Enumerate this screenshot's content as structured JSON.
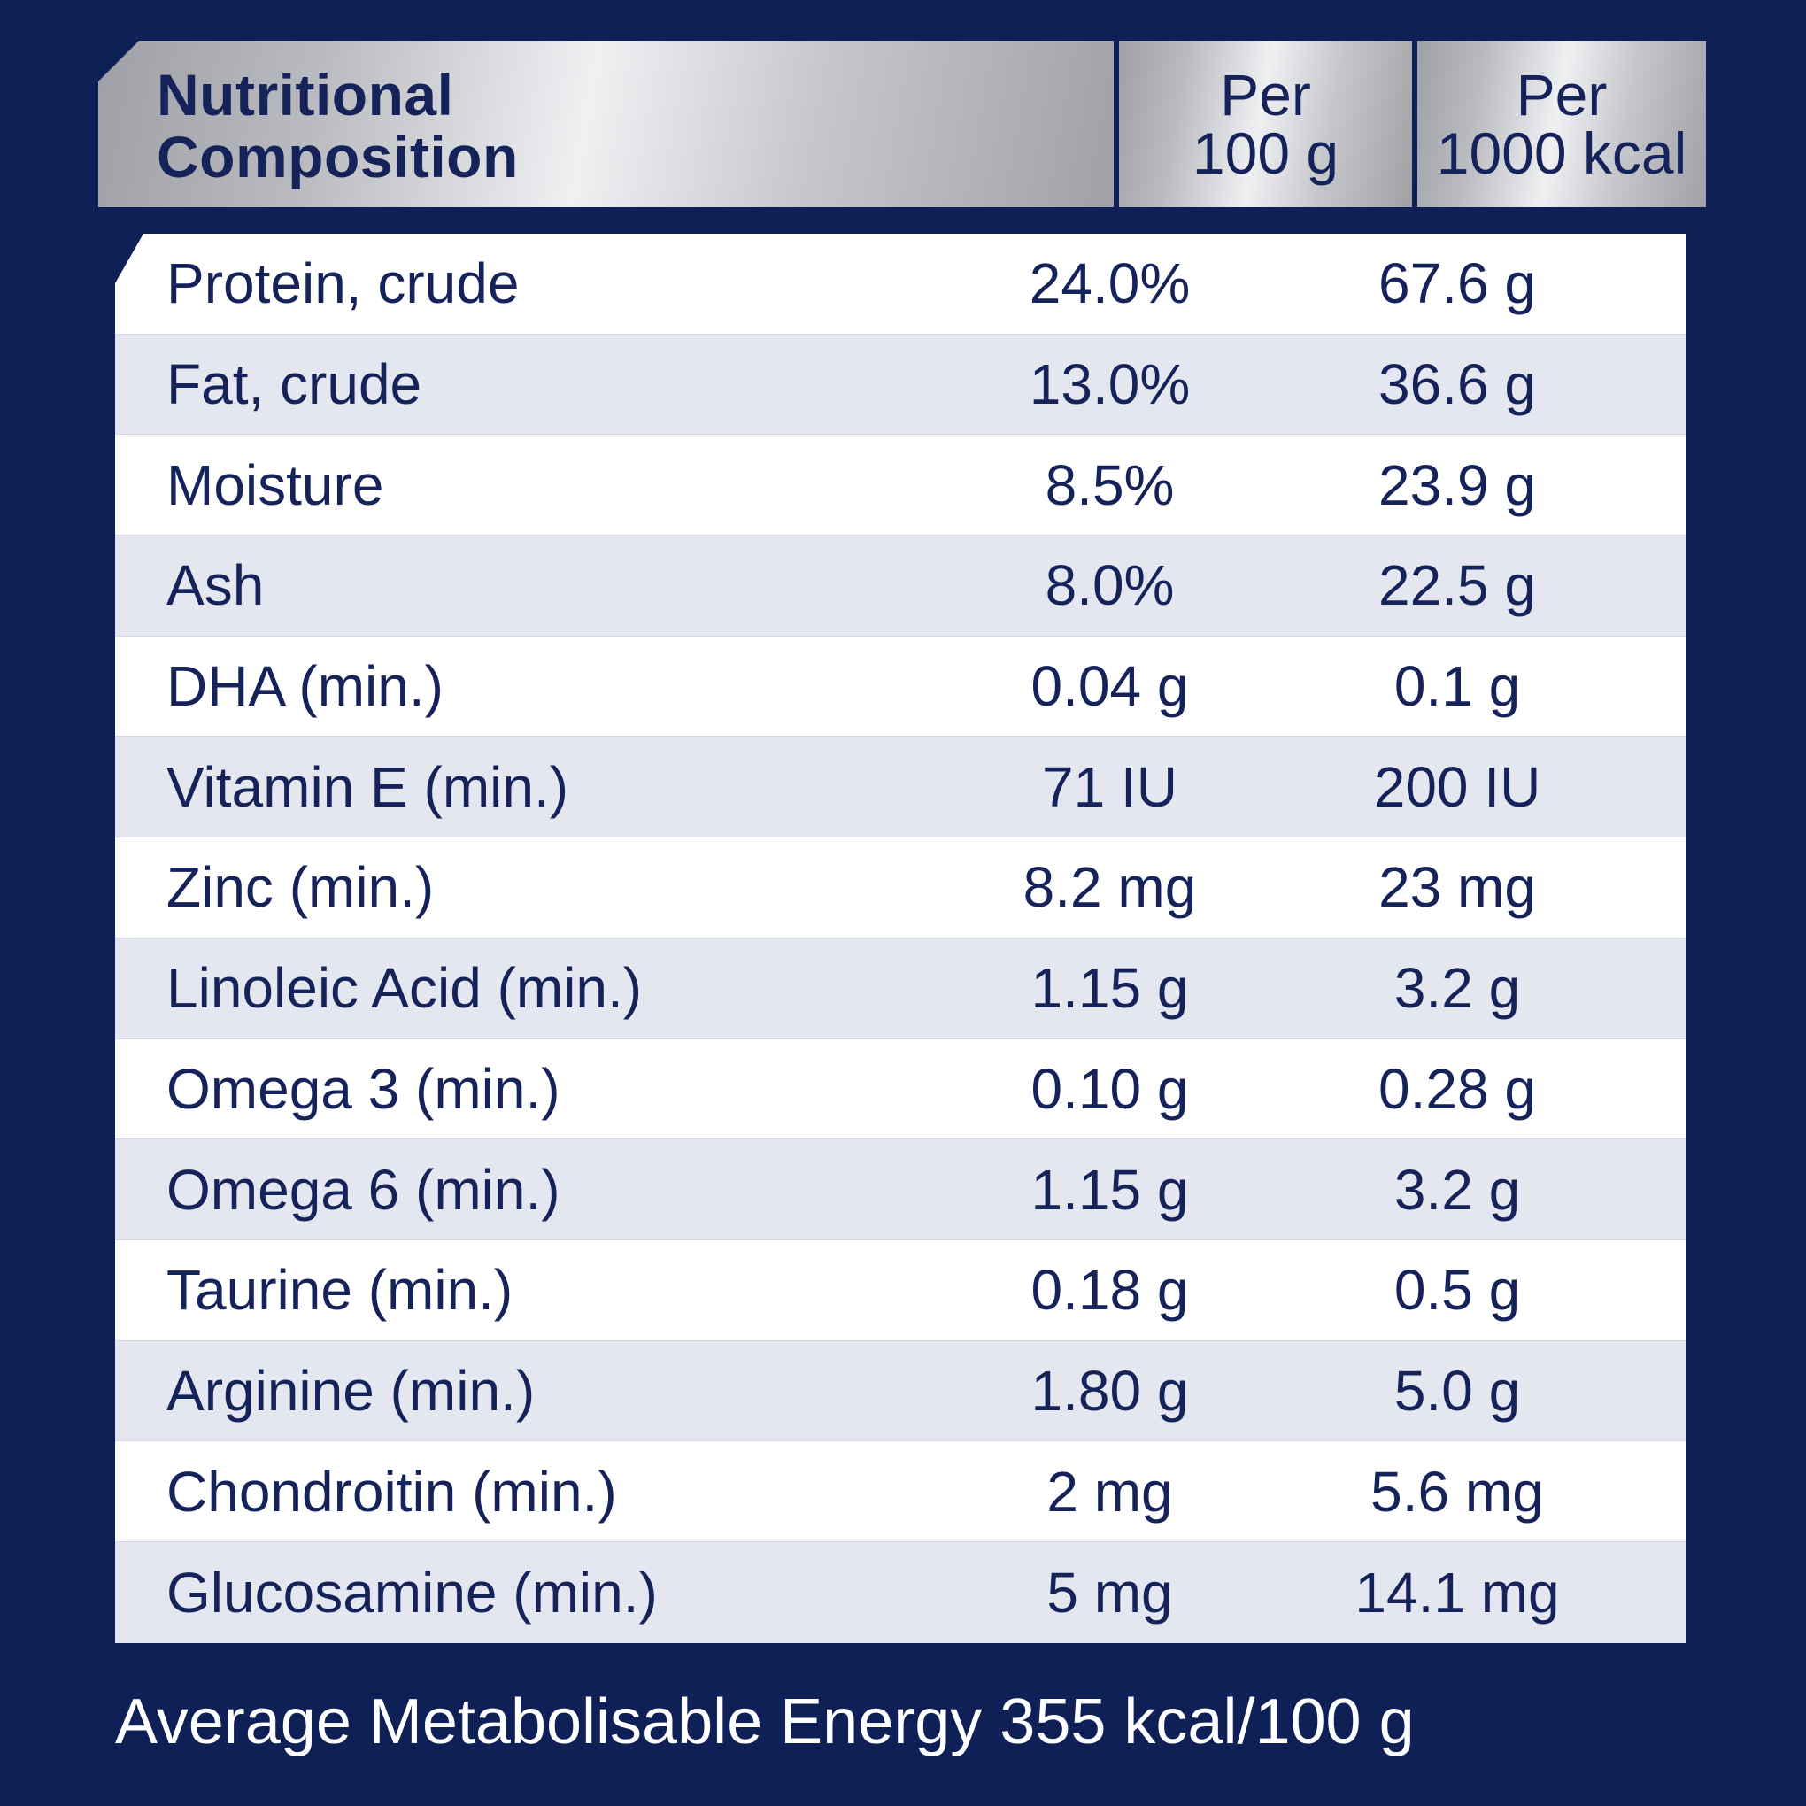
{
  "header": {
    "title_line1": "Nutritional",
    "title_line2": "Composition",
    "col1_line1": "Per",
    "col1_line2": "100 g",
    "col2_line1": "Per",
    "col2_line2": "1000 kcal"
  },
  "rows": [
    {
      "label": "Protein, crude",
      "per100g": "24.0%",
      "per1000kcal": "67.6 g"
    },
    {
      "label": "Fat, crude",
      "per100g": "13.0%",
      "per1000kcal": "36.6 g"
    },
    {
      "label": "Moisture",
      "per100g": "8.5%",
      "per1000kcal": "23.9 g"
    },
    {
      "label": "Ash",
      "per100g": "8.0%",
      "per1000kcal": "22.5 g"
    },
    {
      "label": "DHA (min.)",
      "per100g": "0.04 g",
      "per1000kcal": "0.1 g"
    },
    {
      "label": "Vitamin E (min.)",
      "per100g": "71 IU",
      "per1000kcal": "200 IU"
    },
    {
      "label": "Zinc (min.)",
      "per100g": "8.2 mg",
      "per1000kcal": "23 mg"
    },
    {
      "label": "Linoleic Acid (min.)",
      "per100g": "1.15 g",
      "per1000kcal": "3.2 g"
    },
    {
      "label": "Omega 3 (min.)",
      "per100g": "0.10 g",
      "per1000kcal": "0.28 g"
    },
    {
      "label": "Omega 6 (min.)",
      "per100g": "1.15 g",
      "per1000kcal": "3.2 g"
    },
    {
      "label": "Taurine (min.)",
      "per100g": "0.18 g",
      "per1000kcal": "0.5 g"
    },
    {
      "label": "Arginine (min.)",
      "per100g": "1.80 g",
      "per1000kcal": "5.0 g"
    },
    {
      "label": "Chondroitin (min.)",
      "per100g": "2 mg",
      "per1000kcal": "5.6 mg"
    },
    {
      "label": "Glucosamine (min.)",
      "per100g": "5 mg",
      "per1000kcal": "14.1 mg"
    }
  ],
  "footer": {
    "energy_text": "Average Metabolisable Energy 355 kcal/100 g"
  },
  "colors": {
    "background": "#0f2057",
    "text": "#15235a",
    "row_alt": "#e4e7ef",
    "footer_text": "#ffffff"
  }
}
